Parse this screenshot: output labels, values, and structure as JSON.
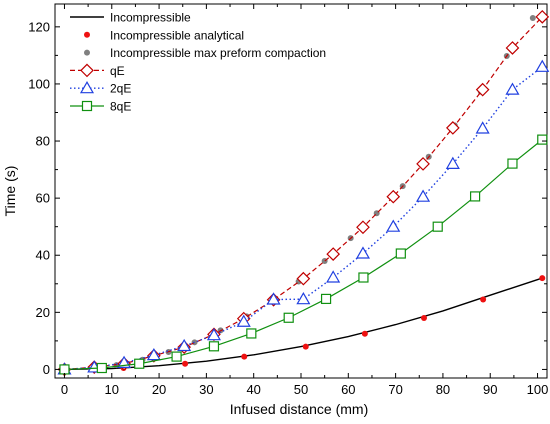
{
  "chart_data": {
    "type": "line",
    "xlabel": "Infused distance (mm)",
    "ylabel": "Time (s)",
    "xlim": [
      -2,
      102
    ],
    "ylim": [
      -3,
      128
    ],
    "xticks": [
      0,
      10,
      20,
      30,
      40,
      50,
      60,
      70,
      80,
      90,
      100
    ],
    "yticks": [
      0,
      20,
      40,
      60,
      80,
      100,
      120
    ],
    "grid": false,
    "legend_position": "top-left",
    "series": [
      {
        "name": "Incompressible",
        "style": "solid-line",
        "color": "#000000",
        "x": [
          0,
          10,
          20,
          30,
          40,
          50,
          60,
          70,
          80,
          90,
          101
        ],
        "y": [
          0,
          0.3,
          1.3,
          2.9,
          5.1,
          8.0,
          11.5,
          15.7,
          20.5,
          26.0,
          32.0
        ]
      },
      {
        "name": "Incompressible analytical",
        "style": "dot",
        "color": "#ee1111",
        "x": [
          0,
          12.5,
          25.5,
          38,
          51,
          63.5,
          76,
          88.5,
          101
        ],
        "y": [
          0,
          0.5,
          2.0,
          4.5,
          8.0,
          12.5,
          18.0,
          24.5,
          32.0
        ]
      },
      {
        "name": "Incompressible max preform compaction",
        "style": "dot",
        "color": "#808080",
        "x": [
          0,
          5.5,
          11,
          16.5,
          22,
          27.5,
          33,
          38.5,
          44,
          49.5,
          55,
          60.5,
          66,
          71.5,
          77,
          82.5,
          88,
          93.5,
          99
        ],
        "y": [
          0,
          0.4,
          1.5,
          3.4,
          6.1,
          9.5,
          13.7,
          18.6,
          24.3,
          30.8,
          38.0,
          46.0,
          54.7,
          64.2,
          74.5,
          85.5,
          97.3,
          109.8,
          123.1
        ]
      },
      {
        "name": "qE",
        "style": "dashed-line-diamond",
        "color": "#c00000",
        "x": [
          0,
          6.3,
          12.6,
          18.9,
          25.3,
          31.6,
          37.9,
          44.2,
          50.5,
          56.8,
          63.1,
          69.5,
          75.8,
          82.1,
          88.4,
          94.7,
          101
        ],
        "y": [
          0,
          0.8,
          2.0,
          4.8,
          7.8,
          12.3,
          17.8,
          24.4,
          31.8,
          40.4,
          49.8,
          60.5,
          72.0,
          84.6,
          98.0,
          112.6,
          123.5
        ]
      },
      {
        "name": "2qE",
        "style": "dotted-line-triangle",
        "color": "#2040e0",
        "x": [
          0,
          6.3,
          12.6,
          18.9,
          25.3,
          31.6,
          37.9,
          44.2,
          50.5,
          56.8,
          63.1,
          69.5,
          75.8,
          82.1,
          88.4,
          94.7,
          101
        ],
        "y": [
          0,
          0.7,
          2.3,
          5.0,
          8.2,
          12.0,
          16.7,
          24.5,
          24.6,
          32.2,
          40.6,
          50.0,
          60.5,
          72.0,
          84.4,
          98.0,
          106.0
        ]
      },
      {
        "name": "8qE",
        "style": "solid-line-square",
        "color": "#109010",
        "x": [
          0,
          7.9,
          15.8,
          23.7,
          31.6,
          39.5,
          47.4,
          55.3,
          63.2,
          71.1,
          78.9,
          86.8,
          94.7,
          101
        ],
        "y": [
          0,
          0.5,
          2.0,
          4.5,
          8.1,
          12.6,
          18.1,
          24.7,
          32.2,
          40.6,
          50.0,
          60.6,
          72.1,
          80.5
        ]
      }
    ]
  }
}
